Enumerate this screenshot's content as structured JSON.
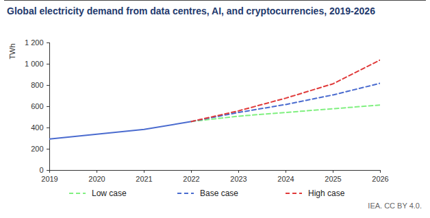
{
  "chart_data": {
    "type": "line",
    "title": "Global electricity demand from data centres, AI, and cryptocurrencies, 2019-2026",
    "y_label": "TWh",
    "caption": "IEA. CC BY 4.0.",
    "x": [
      2019,
      2020,
      2021,
      2022,
      2023,
      2024,
      2025,
      2026
    ],
    "series": [
      {
        "color": "#4a6bcf",
        "line_style": "solid",
        "values": [
          295,
          340,
          385,
          460,
          null,
          null,
          null,
          null
        ]
      },
      {
        "name": "Low case",
        "color": "#80f080",
        "line_style": "dashed",
        "values": [
          null,
          null,
          null,
          460,
          510,
          545,
          580,
          615
        ]
      },
      {
        "name": "Base case",
        "color": "#4a6bcf",
        "line_style": "dashed",
        "values": [
          null,
          null,
          null,
          460,
          545,
          620,
          710,
          820
        ]
      },
      {
        "name": "High case",
        "color": "#e03a3a",
        "line_style": "dashed",
        "values": [
          null,
          null,
          null,
          460,
          560,
          680,
          815,
          1040
        ]
      }
    ],
    "xlim": [
      2019,
      2026
    ],
    "xticks": [
      2019,
      2020,
      2021,
      2022,
      2023,
      2024,
      2025,
      2026
    ],
    "ylim": [
      0,
      1200
    ],
    "yticks": [
      0,
      200,
      400,
      600,
      800,
      {
        "value": 1000,
        "label": "1 000"
      },
      {
        "value": 1200,
        "label": "1 200"
      }
    ],
    "grid": false,
    "legend": "bottom"
  }
}
